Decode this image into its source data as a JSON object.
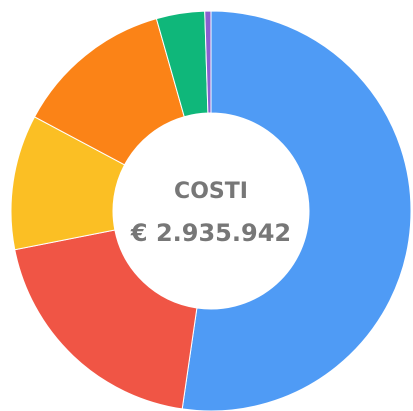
{
  "chart_data": {
    "type": "donut",
    "title": "COSTI",
    "total_label": "€ 2.935.942",
    "values": [
      52.3,
      19.6,
      10.9,
      12.8,
      3.9,
      0.5
    ],
    "colors": [
      "#4f9bf5",
      "#f05545",
      "#fbbf24",
      "#fb8317",
      "#0fb77a",
      "#8a5fd0"
    ]
  }
}
